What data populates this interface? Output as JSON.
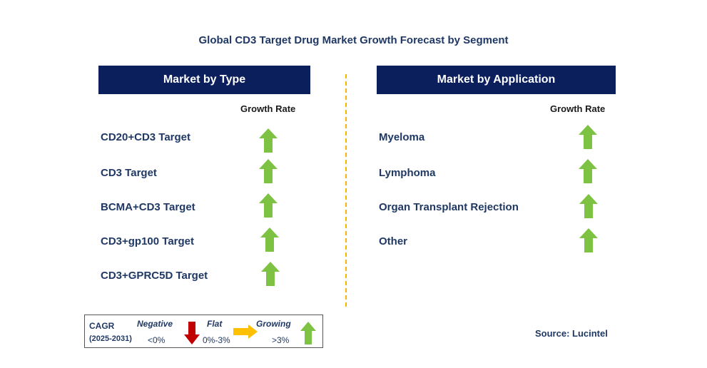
{
  "title": "Global CD3 Target Drug Market Growth Forecast by Segment",
  "left_panel": {
    "header": "Market by Type",
    "growth_label": "Growth Rate",
    "rows": [
      {
        "label": "CD20+CD3 Target",
        "trend": "growing"
      },
      {
        "label": "CD3 Target",
        "trend": "growing"
      },
      {
        "label": "BCMA+CD3 Target",
        "trend": "growing"
      },
      {
        "label": "CD3+gp100 Target",
        "trend": "growing"
      },
      {
        "label": "CD3+GPRC5D Target",
        "trend": "growing"
      }
    ]
  },
  "right_panel": {
    "header": "Market by Application",
    "growth_label": "Growth Rate",
    "rows": [
      {
        "label": "Myeloma",
        "trend": "growing"
      },
      {
        "label": "Lymphoma",
        "trend": "growing"
      },
      {
        "label": "Organ Transplant Rejection",
        "trend": "growing"
      },
      {
        "label": "Other",
        "trend": "growing"
      }
    ]
  },
  "legend": {
    "cagr": "CAGR",
    "period": "(2025-2031)",
    "negative": {
      "label": "Negative",
      "range": "<0%",
      "icon": "red-down-arrow-icon"
    },
    "flat": {
      "label": "Flat",
      "range": "0%-3%",
      "icon": "orange-right-arrow-icon"
    },
    "growing": {
      "label": "Growing",
      "range": ">3%",
      "icon": "green-up-arrow-icon"
    }
  },
  "source": "Source: Lucintel",
  "colors": {
    "header_bg": "#0b1f5c",
    "title": "#1f3864",
    "growing": "#7dc242",
    "negative": "#c00000",
    "flat": "#ffc000",
    "divider": "#f2b705"
  }
}
